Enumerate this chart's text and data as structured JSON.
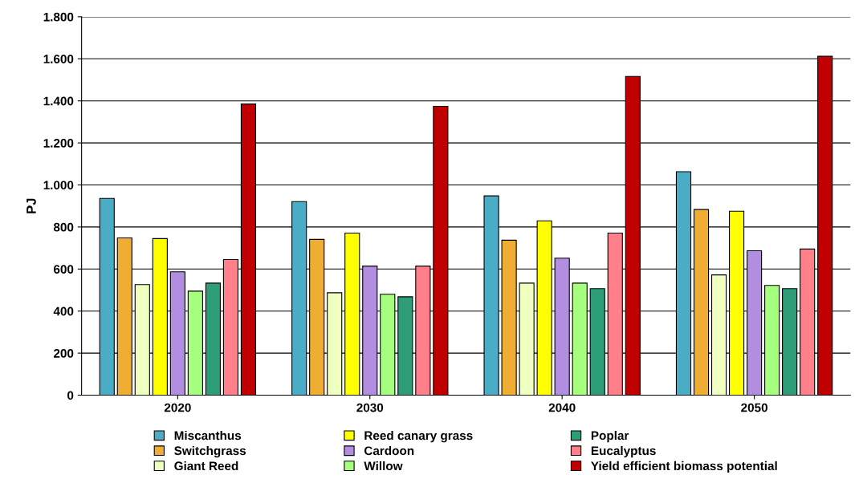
{
  "chart_data": {
    "type": "bar",
    "ylabel": "PJ",
    "categories": [
      "2020",
      "2030",
      "2040",
      "2050"
    ],
    "ylim": [
      0,
      1800
    ],
    "yticks": [
      0,
      200,
      400,
      600,
      800,
      {
        "value": 1000,
        "label": "1.000"
      },
      {
        "value": 1200,
        "label": "1.200"
      },
      {
        "value": 1400,
        "label": "1.400"
      },
      {
        "value": 1600,
        "label": "1.600"
      },
      {
        "value": 1800,
        "label": "1.800"
      }
    ],
    "grid": "y",
    "legend": "bottom",
    "series": [
      {
        "name": "Miscanthus",
        "color": "#4bacc6",
        "values": [
          936,
          921,
          948,
          1063
        ]
      },
      {
        "name": "Switchgrass",
        "color": "#f0ad33",
        "values": [
          748,
          741,
          737,
          883
        ]
      },
      {
        "name": "Giant Reed",
        "color": "#eeffc0",
        "values": [
          526,
          487,
          533,
          572
        ]
      },
      {
        "name": "Reed canary grass",
        "color": "#ffff00",
        "values": [
          745,
          771,
          829,
          875
        ]
      },
      {
        "name": "Cardoon",
        "color": "#b28ee0",
        "values": [
          587,
          614,
          652,
          687
        ]
      },
      {
        "name": "Willow",
        "color": "#a6ff7f",
        "values": [
          495,
          480,
          533,
          522
        ]
      },
      {
        "name": "Poplar",
        "color": "#2e9e78",
        "values": [
          533,
          468,
          507,
          507
        ]
      },
      {
        "name": "Eucalyptus",
        "color": "#ff7f8a",
        "values": [
          645,
          614,
          771,
          695
        ]
      },
      {
        "name": "Yield efficient biomass potential",
        "color": "#c00000",
        "values": [
          1385,
          1374,
          1516,
          1612
        ]
      }
    ]
  }
}
